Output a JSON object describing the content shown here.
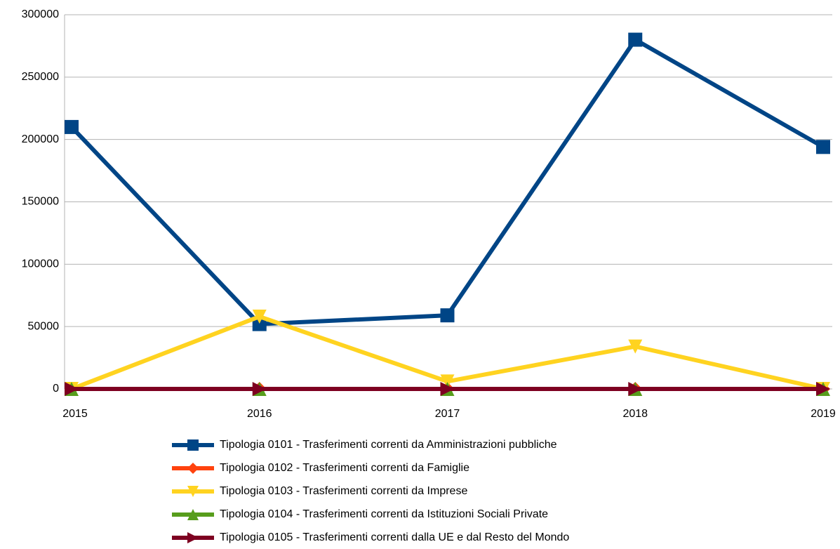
{
  "chart_data": {
    "type": "line",
    "x": [
      "2015",
      "2016",
      "2017",
      "2018",
      "2019"
    ],
    "series": [
      {
        "name": "Tipologia 0101 - Trasferimenti correnti da Amministrazioni pubbliche",
        "color": "#004586",
        "marker": "square",
        "values": [
          210000,
          52000,
          59000,
          280000,
          194000
        ]
      },
      {
        "name": "Tipologia 0102 - Trasferimenti correnti da Famiglie",
        "color": "#ff420e",
        "marker": "diamond",
        "values": [
          0,
          0,
          0,
          0,
          0
        ]
      },
      {
        "name": "Tipologia 0103 - Trasferimenti correnti da Imprese",
        "color": "#ffd320",
        "marker": "triangle-down",
        "values": [
          0,
          58000,
          6000,
          34000,
          0
        ]
      },
      {
        "name": "Tipologia 0104 - Trasferimenti correnti da Istituzioni Sociali Private",
        "color": "#579d1c",
        "marker": "triangle-up",
        "values": [
          0,
          0,
          0,
          0,
          0
        ]
      },
      {
        "name": "Tipologia 0105 - Trasferimenti correnti dalla UE e dal Resto del Mondo",
        "color": "#7e0021",
        "marker": "triangle-right",
        "values": [
          0,
          0,
          0,
          0,
          0
        ]
      }
    ],
    "ylim": [
      0,
      300000
    ],
    "yticks": [
      0,
      50000,
      100000,
      150000,
      200000,
      250000,
      300000
    ],
    "grid": true,
    "legend": "bottom"
  }
}
